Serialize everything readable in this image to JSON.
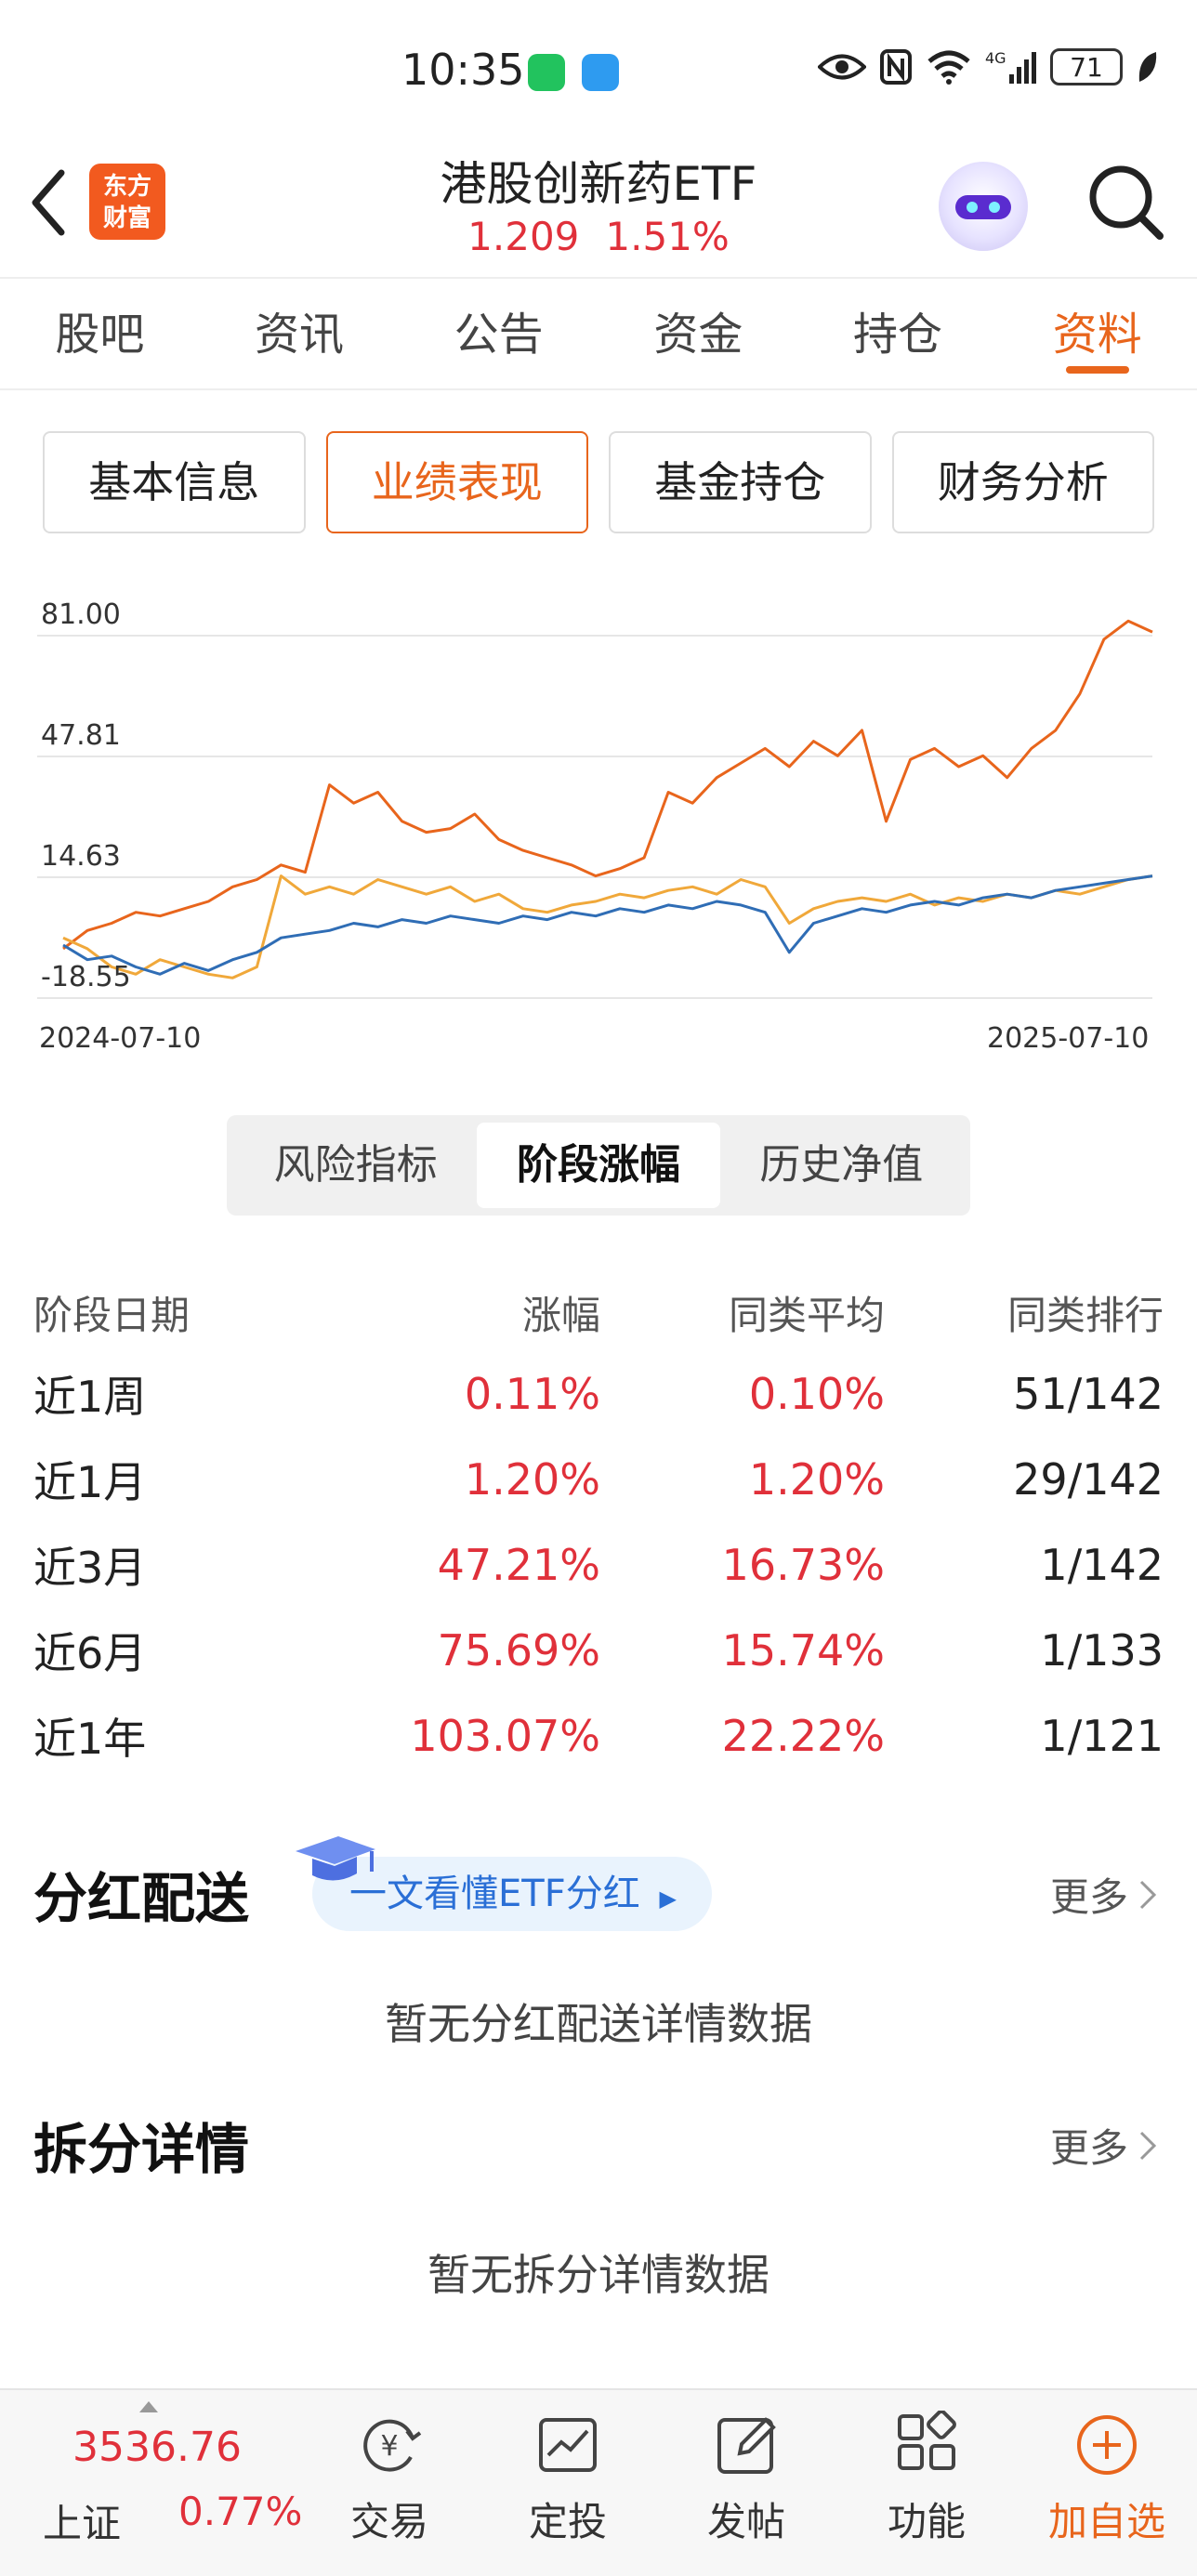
{
  "status_bar": {
    "time": "10:35",
    "battery": "71",
    "icons": [
      "wechat-icon",
      "message-icon",
      "eye-icon",
      "nfc-icon",
      "wifi-icon",
      "4g-signal-icon",
      "battery-icon",
      "leaf-icon"
    ]
  },
  "header": {
    "logo_text": "东方财富",
    "title": "港股创新药ETF",
    "price": "1.209",
    "change": "1.51%"
  },
  "tabs": [
    {
      "label": "股吧"
    },
    {
      "label": "资讯"
    },
    {
      "label": "公告"
    },
    {
      "label": "资金"
    },
    {
      "label": "持仓"
    },
    {
      "label": "资料"
    }
  ],
  "segments": [
    {
      "label": "基本信息"
    },
    {
      "label": "业绩表现"
    },
    {
      "label": "基金持仓"
    },
    {
      "label": "财务分析"
    }
  ],
  "chart_data": {
    "type": "line",
    "y_ticks": [
      "81.00",
      "47.81",
      "14.63",
      "-18.55"
    ],
    "ylim": [
      -18.55,
      81.0
    ],
    "x_start": "2024-07-10",
    "x_end": "2025-07-10",
    "grid": true,
    "series": [
      {
        "color": "#e8651c",
        "values": [
          -5,
          0,
          2,
          5,
          4,
          6,
          8,
          12,
          14,
          18,
          16,
          40,
          35,
          38,
          30,
          27,
          28,
          32,
          25,
          22,
          20,
          18,
          15,
          17,
          20,
          38,
          35,
          42,
          46,
          50,
          45,
          52,
          48,
          55,
          30,
          47,
          50,
          45,
          48,
          42,
          50,
          55,
          65,
          80,
          85,
          82
        ]
      },
      {
        "color": "#f0a83a",
        "values": [
          -2,
          -5,
          -10,
          -12,
          -8,
          -10,
          -12,
          -13,
          -10,
          15,
          10,
          12,
          10,
          14,
          12,
          10,
          12,
          8,
          10,
          6,
          5,
          7,
          8,
          10,
          9,
          11,
          12,
          10,
          14,
          12,
          2,
          6,
          8,
          9,
          8,
          10,
          7,
          9,
          8,
          10,
          9,
          11,
          10,
          12,
          14,
          15
        ]
      },
      {
        "color": "#2f6db5",
        "values": [
          -4,
          -8,
          -7,
          -10,
          -12,
          -9,
          -11,
          -8,
          -6,
          -2,
          -1,
          0,
          2,
          1,
          3,
          2,
          4,
          3,
          2,
          4,
          3,
          5,
          4,
          6,
          5,
          7,
          6,
          8,
          7,
          5,
          -6,
          2,
          4,
          6,
          5,
          7,
          8,
          7,
          9,
          10,
          9,
          11,
          12,
          13,
          14,
          15
        ]
      }
    ]
  },
  "mini_segments": [
    {
      "label": "风险指标"
    },
    {
      "label": "阶段涨幅"
    },
    {
      "label": "历史净值"
    }
  ],
  "period_table": {
    "headers": [
      "阶段日期",
      "涨幅",
      "同类平均",
      "同类排行"
    ],
    "rows": [
      [
        "近1周",
        "0.11%",
        "0.10%",
        "51/142"
      ],
      [
        "近1月",
        "1.20%",
        "1.20%",
        "29/142"
      ],
      [
        "近3月",
        "47.21%",
        "16.73%",
        "1/142"
      ],
      [
        "近6月",
        "75.69%",
        "15.74%",
        "1/133"
      ],
      [
        "近1年",
        "103.07%",
        "22.22%",
        "1/121"
      ]
    ]
  },
  "dividend": {
    "title": "分红配送",
    "pill": "一文看懂ETF分红",
    "more": "更多",
    "empty": "暂无分红配送详情数据"
  },
  "split": {
    "title": "拆分详情",
    "more": "更多",
    "empty": "暂无拆分详情数据"
  },
  "bottom_bar": {
    "index_value": "3536.76",
    "index_name": "上证",
    "index_change": "0.77%",
    "items": [
      {
        "label": "交易"
      },
      {
        "label": "定投"
      },
      {
        "label": "发帖"
      },
      {
        "label": "功能"
      },
      {
        "label": "加自选"
      }
    ]
  }
}
